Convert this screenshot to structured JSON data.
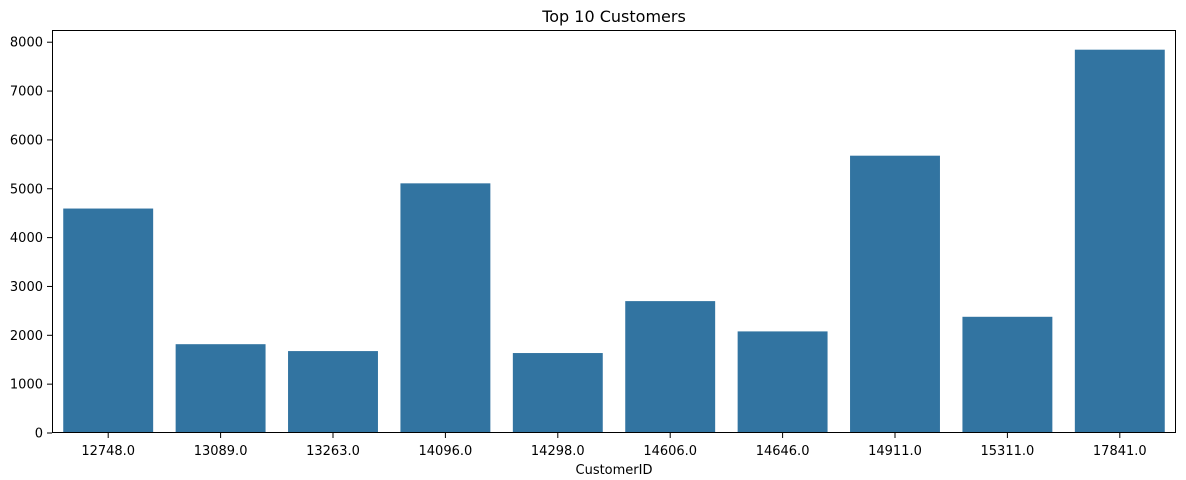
{
  "chart_data": {
    "type": "bar",
    "title": "Top 10 Customers",
    "xlabel": "CustomerID",
    "ylabel": "",
    "categories": [
      "12748.0",
      "13089.0",
      "13263.0",
      "14096.0",
      "14298.0",
      "14606.0",
      "14646.0",
      "14911.0",
      "15311.0",
      "17841.0"
    ],
    "values": [
      4595,
      1818,
      1677,
      5111,
      1637,
      2700,
      2080,
      5677,
      2379,
      7847
    ],
    "ylim": [
      0,
      8250
    ],
    "yticks": [
      0,
      1000,
      2000,
      3000,
      4000,
      5000,
      6000,
      7000,
      8000
    ],
    "grid": false,
    "legend": "none",
    "bar_color": "#3274a1",
    "axis_color": "#000000"
  }
}
